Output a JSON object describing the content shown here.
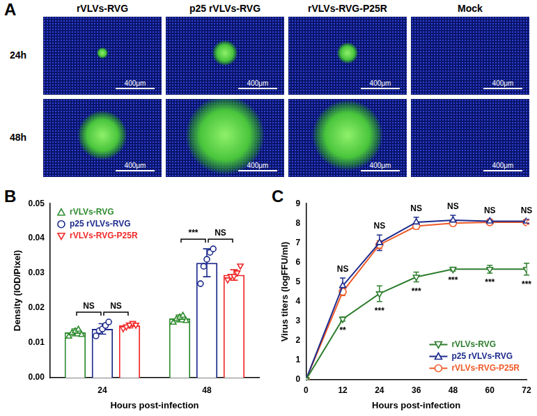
{
  "image_panel": {
    "label": "A",
    "columns": [
      "rVLVs-RVG",
      "p25 rVLVs-RVG",
      "rVLVs-RVG-P25R",
      "Mock"
    ],
    "rows": [
      "24h",
      "48h"
    ],
    "scale_bar": "400μm"
  },
  "chart_data": [
    {
      "panel": "B",
      "type": "bar",
      "categories": [
        "24",
        "48"
      ],
      "x_label": "Hours post-infection",
      "y_label": "Density (IOD/Pixel)",
      "ylim": [
        0,
        0.05
      ],
      "yticks": [
        {
          "value": 0,
          "label": "0.00"
        },
        0.01,
        0.02,
        0.03,
        0.04,
        0.05
      ],
      "grid": false,
      "legend": "upper left",
      "series": [
        {
          "name": "rVLVs-RVG",
          "color": "#2e8b2e",
          "marker": "triangle-up",
          "values": [
            0.013,
            0.017
          ],
          "errors": [
            0.001,
            0.001
          ],
          "points": [
            [
              0.012,
              0.013,
              0.0135,
              0.014,
              0.0125
            ],
            [
              0.016,
              0.017,
              0.0175,
              0.018,
              0.0165
            ]
          ]
        },
        {
          "name": "p25 rVLVs-RVG",
          "color": "#1c2a8c",
          "marker": "circle",
          "values": [
            0.014,
            0.033
          ],
          "errors": [
            0.0015,
            0.004
          ],
          "points": [
            [
              0.012,
              0.0135,
              0.014,
              0.015,
              0.016
            ],
            [
              0.027,
              0.032,
              0.034,
              0.036,
              0.037
            ]
          ]
        },
        {
          "name": "rVLVs-RVG-P25R",
          "color": "#f02828",
          "marker": "triangle-down",
          "values": [
            0.015,
            0.0295
          ],
          "errors": [
            0.0007,
            0.0015
          ],
          "points": [
            [
              0.014,
              0.0145,
              0.015,
              0.0155,
              0.015
            ],
            [
              0.028,
              0.029,
              0.029,
              0.03,
              0.032
            ]
          ]
        }
      ],
      "comparisons": [
        {
          "category": "24",
          "pair": [
            "rVLVs-RVG",
            "p25 rVLVs-RVG"
          ],
          "text": "NS"
        },
        {
          "category": "24",
          "pair": [
            "p25 rVLVs-RVG",
            "rVLVs-RVG-P25R"
          ],
          "text": "NS"
        },
        {
          "category": "48",
          "pair": [
            "rVLVs-RVG",
            "p25 rVLVs-RVG"
          ],
          "text": "***"
        },
        {
          "category": "48",
          "pair": [
            "p25 rVLVs-RVG",
            "rVLVs-RVG-P25R"
          ],
          "text": "NS"
        }
      ]
    },
    {
      "panel": "C",
      "type": "line",
      "x": [
        0,
        12,
        24,
        36,
        48,
        60,
        72
      ],
      "xlim": [
        0,
        72
      ],
      "xticks": [
        0,
        12,
        24,
        36,
        48,
        60,
        72
      ],
      "x_label": "Hours post-infection",
      "y_label": "Virus titers (logFFU/ml)",
      "ylim": [
        0,
        9
      ],
      "yticks": [
        0,
        1,
        2,
        3,
        4,
        5,
        6,
        7,
        8,
        9
      ],
      "grid": false,
      "legend": "lower right",
      "series": [
        {
          "name": "rVLVs-RVG",
          "color": "#2e7d2e",
          "marker": "triangle-down",
          "values": [
            0,
            3.1,
            4.4,
            5.25,
            5.65,
            5.65,
            5.65
          ],
          "errors": [
            0,
            0.1,
            0.4,
            0.25,
            0.1,
            0.2,
            0.3
          ]
        },
        {
          "name": "p25 rVLVs-RVG",
          "color": "#1c2a8c",
          "marker": "triangle-up",
          "values": [
            0,
            4.8,
            7.0,
            8.05,
            8.15,
            8.1,
            8.1
          ],
          "errors": [
            0,
            0.4,
            0.4,
            0.25,
            0.25,
            0.1,
            0.1
          ]
        },
        {
          "name": "rVLVs-RVG-P25R",
          "color": "#f05a28",
          "marker": "circle",
          "values": [
            0,
            4.5,
            6.9,
            7.85,
            8.0,
            8.05,
            8.05
          ],
          "errors": [
            0,
            0.2,
            0.2,
            0.15,
            0.1,
            0.1,
            0.1
          ]
        }
      ],
      "annotations": [
        {
          "x": 12,
          "text": "NS",
          "position": "above"
        },
        {
          "x": 12,
          "text": "**",
          "position": "below"
        },
        {
          "x": 24,
          "text": "NS",
          "position": "above"
        },
        {
          "x": 24,
          "text": "***",
          "position": "below"
        },
        {
          "x": 36,
          "text": "NS",
          "position": "above"
        },
        {
          "x": 36,
          "text": "***",
          "position": "below"
        },
        {
          "x": 48,
          "text": "NS",
          "position": "above"
        },
        {
          "x": 48,
          "text": "***",
          "position": "below"
        },
        {
          "x": 60,
          "text": "NS",
          "position": "above"
        },
        {
          "x": 60,
          "text": "***",
          "position": "below"
        },
        {
          "x": 72,
          "text": "NS",
          "position": "above"
        },
        {
          "x": 72,
          "text": "***",
          "position": "below"
        }
      ]
    }
  ]
}
